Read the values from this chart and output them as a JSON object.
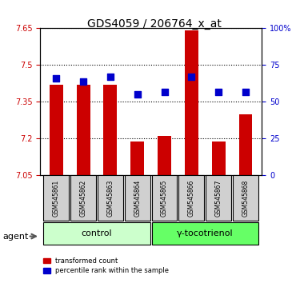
{
  "title": "GDS4059 / 206764_x_at",
  "samples": [
    "GSM545861",
    "GSM545862",
    "GSM545863",
    "GSM545864",
    "GSM545865",
    "GSM545866",
    "GSM545867",
    "GSM545868"
  ],
  "red_values": [
    7.42,
    7.42,
    7.42,
    7.19,
    7.21,
    7.64,
    7.19,
    7.3
  ],
  "blue_values": [
    66,
    64,
    67,
    55,
    57,
    67,
    57,
    57
  ],
  "ylim_left": [
    7.05,
    7.65
  ],
  "ylim_right": [
    0,
    100
  ],
  "yticks_left": [
    7.05,
    7.2,
    7.35,
    7.5,
    7.65
  ],
  "yticks_right": [
    0,
    25,
    50,
    75,
    100
  ],
  "ytick_labels_left": [
    "7.05",
    "7.2",
    "7.35",
    "7.5",
    "7.65"
  ],
  "ytick_labels_right": [
    "0",
    "25",
    "50",
    "75",
    "100%"
  ],
  "bar_color": "#cc0000",
  "dot_color": "#0000cc",
  "bar_bottom": 7.05,
  "groups": [
    {
      "label": "control",
      "indices": [
        0,
        1,
        2,
        3
      ],
      "color": "#ccffcc"
    },
    {
      "label": "γ-tocotrienol",
      "indices": [
        4,
        5,
        6,
        7
      ],
      "color": "#66ff66"
    }
  ],
  "agent_label": "agent",
  "legend_red": "transformed count",
  "legend_blue": "percentile rank within the sample",
  "grid_color": "black",
  "grid_style": "dotted",
  "background_color": "#ffffff",
  "plot_bg_color": "#ffffff",
  "bar_width": 0.5,
  "dot_size": 40
}
